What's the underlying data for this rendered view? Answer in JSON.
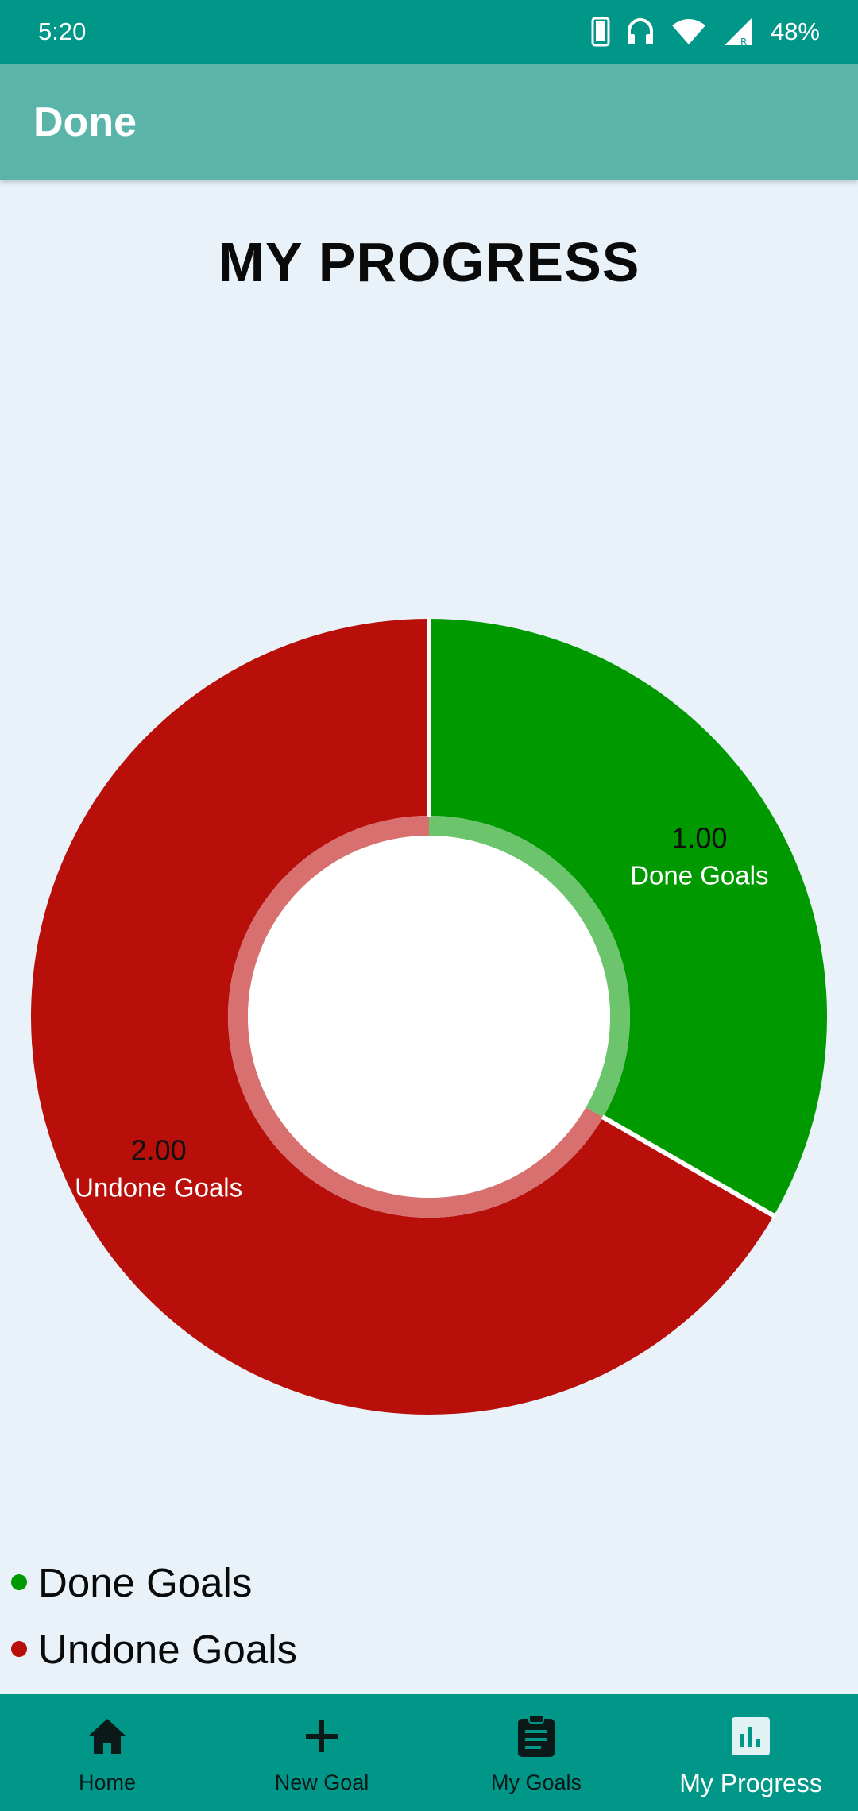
{
  "status_bar": {
    "time": "5:20",
    "battery": "48%",
    "icons": [
      "phone-icon",
      "headset-icon",
      "wifi-icon",
      "signal-icon"
    ]
  },
  "app_bar": {
    "title": "Done"
  },
  "page": {
    "title": "MY PROGRESS"
  },
  "chart_data": {
    "type": "pie",
    "title": "",
    "categories": [
      "Done Goals",
      "Undone Goals"
    ],
    "values": [
      1.0,
      2.0
    ],
    "value_labels": [
      "1.00",
      "2.00"
    ],
    "colors": [
      "#009a00",
      "#b80f0a"
    ],
    "donut": true,
    "legend_position": "bottom-left"
  },
  "legend": [
    {
      "label": "Done Goals",
      "color": "#009a00"
    },
    {
      "label": "Undone Goals",
      "color": "#b80f0a"
    }
  ],
  "bottom_nav": {
    "items": [
      {
        "label": "Home",
        "icon": "home-icon",
        "active": false
      },
      {
        "label": "New Goal",
        "icon": "plus-icon",
        "active": false
      },
      {
        "label": "My Goals",
        "icon": "clipboard-icon",
        "active": false
      },
      {
        "label": "My Progress",
        "icon": "bar-chart-icon",
        "active": true
      }
    ]
  },
  "colors": {
    "status_bar": "#009688",
    "app_bar": "#5bb4aa",
    "background": "#e8f2f8",
    "nav_bar": "#009688"
  }
}
